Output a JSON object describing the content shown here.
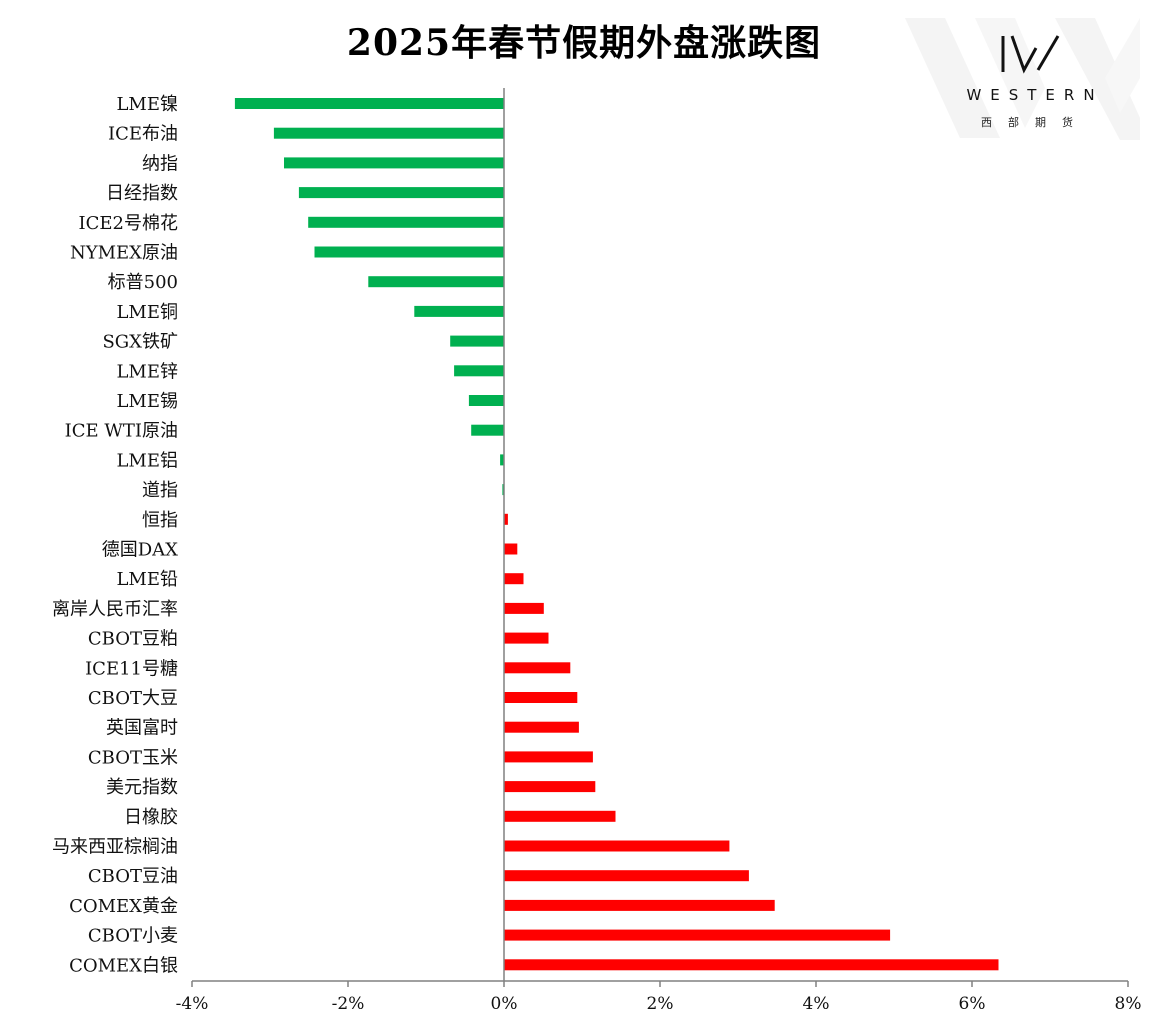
{
  "chart_data": {
    "type": "bar",
    "orientation": "horizontal",
    "title": "2025年春节假期外盘涨跌图",
    "categories": [
      "LME镍",
      "ICE布油",
      "纳指",
      "日经指数",
      "ICE2号棉花",
      "NYMEX原油",
      "标普500",
      "LME铜",
      "SGX铁矿",
      "LME锌",
      "LME锡",
      "ICE WTI原油",
      "LME铝",
      "道指",
      "恒指",
      "德国DAX",
      "LME铅",
      "离岸人民币汇率",
      "CBOT豆粕",
      "ICE11号糖",
      "CBOT大豆",
      "英国富时",
      "CBOT玉米",
      "美元指数",
      "日橡胶",
      "马来西亚棕榈油",
      "CBOT豆油",
      "COMEX黄金",
      "CBOT小麦",
      "COMEX白银"
    ],
    "values": [
      -3.45,
      -2.95,
      -2.82,
      -2.63,
      -2.51,
      -2.43,
      -1.74,
      -1.15,
      -0.69,
      -0.64,
      -0.45,
      -0.42,
      -0.05,
      -0.02,
      0.05,
      0.17,
      0.25,
      0.51,
      0.57,
      0.85,
      0.94,
      0.96,
      1.14,
      1.17,
      1.43,
      2.89,
      3.14,
      3.47,
      4.95,
      6.34
    ],
    "xlim": [
      -4,
      8
    ],
    "ticks": [
      -4,
      -2,
      0,
      2,
      4,
      6,
      8
    ],
    "tick_labels": [
      "-4%",
      "-2%",
      "0%",
      "2%",
      "4%",
      "6%",
      "8%"
    ],
    "xlabel": "",
    "ylabel": "",
    "grid": false,
    "colors": {
      "negative": "#00b050",
      "positive": "#ff0000"
    }
  },
  "logo": {
    "brand": "WESTERN",
    "subtitle": "西部期货",
    "mark_icon": "western-w-icon",
    "color": "#111111"
  }
}
